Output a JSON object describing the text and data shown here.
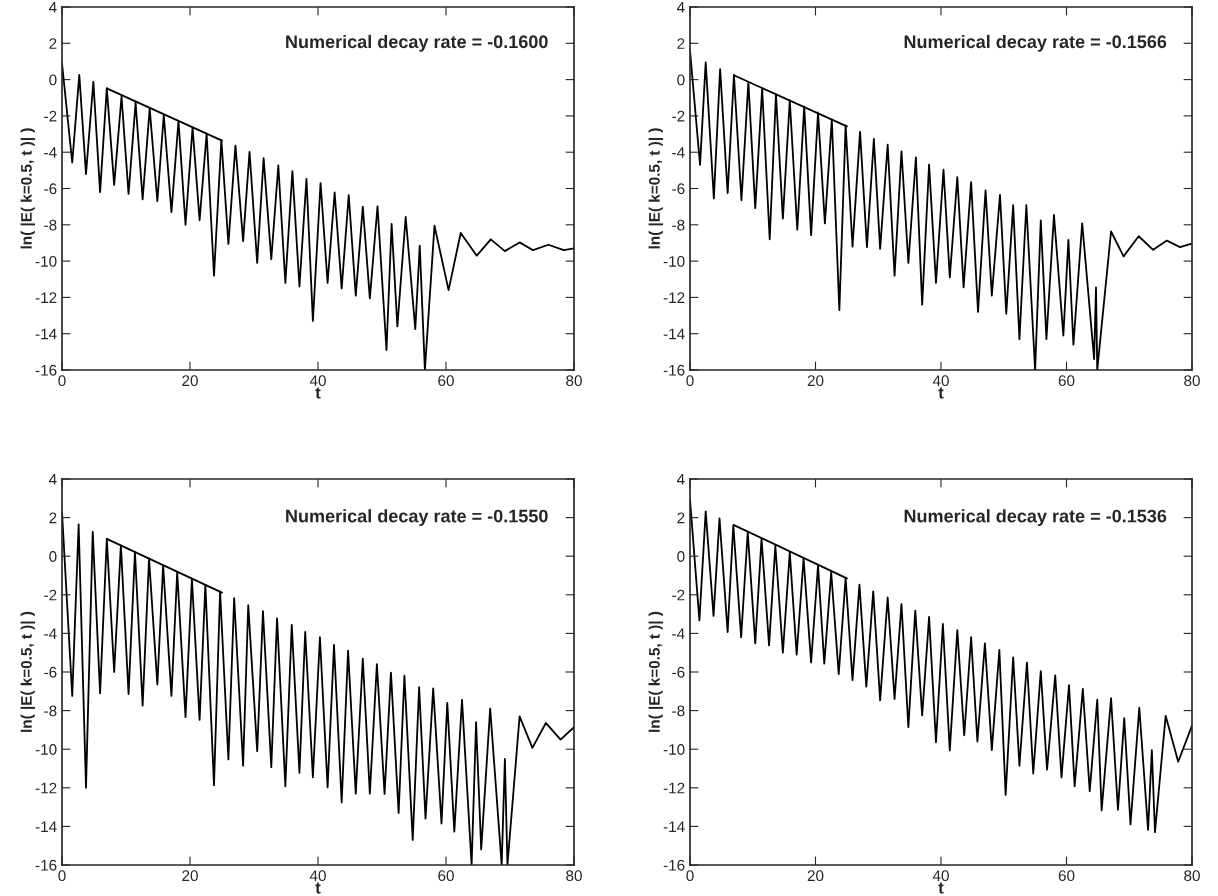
{
  "chart_data": [
    {
      "type": "line",
      "xlabel": "t",
      "ylabel": "ln( |E( k=0.5, t )| )",
      "xlim": [
        0,
        80
      ],
      "ylim": [
        -16,
        4
      ],
      "xticks": [
        0,
        20,
        40,
        60,
        80
      ],
      "yticks": [
        -16,
        -14,
        -12,
        -10,
        -8,
        -6,
        -4,
        -2,
        0,
        2,
        4
      ],
      "grid": false,
      "legend": false,
      "annotations": [
        "Numerical decay rate = -0.1600"
      ],
      "series": [
        {
          "color": "#000000",
          "x": [
            0,
            1.6,
            2.7,
            3.75,
            4.9,
            5.95,
            7.0,
            8.15,
            9.3,
            10.4,
            11.5,
            12.6,
            13.7,
            14.9,
            15.9,
            17.1,
            18.2,
            19.3,
            20.4,
            21.5,
            22.6,
            23.75,
            24.9,
            26.0,
            27.1,
            28.3,
            29.3,
            30.5,
            31.5,
            32.7,
            33.8,
            34.9,
            36.0,
            37.1,
            38.2,
            39.2,
            40.4,
            41.5,
            42.6,
            43.7,
            44.8,
            45.9,
            47.0,
            48.1,
            49.3,
            50.7,
            51.5,
            52.4,
            53.7,
            55.2,
            55.9,
            56.7,
            58.2,
            60.4,
            62.3,
            64.8,
            67.0,
            69.2,
            71.5,
            73.6,
            76.0,
            78.4,
            80
          ],
          "values": [
            0.9,
            -4.57,
            0.26,
            -5.2,
            -0.12,
            -6.2,
            -0.48,
            -5.8,
            -0.93,
            -6.3,
            -1.27,
            -6.6,
            -1.6,
            -6.7,
            -1.95,
            -7.3,
            -2.29,
            -8.0,
            -2.64,
            -7.75,
            -2.98,
            -10.8,
            -3.32,
            -9.05,
            -3.64,
            -8.9,
            -3.98,
            -10.1,
            -4.33,
            -9.9,
            -4.73,
            -11.2,
            -5.05,
            -11.4,
            -5.47,
            -13.3,
            -5.7,
            -11.2,
            -6.22,
            -11.5,
            -6.36,
            -11.9,
            -7.0,
            -12.05,
            -6.98,
            -14.9,
            -7.95,
            -13.6,
            -7.57,
            -13.75,
            -9.15,
            -16,
            -8.05,
            -11.6,
            -8.45,
            -9.7,
            -8.8,
            -9.45,
            -8.97,
            -9.4,
            -9.1,
            -9.4,
            -9.3
          ]
        },
        {
          "type": "line",
          "color": "#000000",
          "x": [
            7.0,
            25.0
          ],
          "values": [
            -0.48,
            -3.36
          ]
        }
      ]
    },
    {
      "type": "line",
      "xlabel": "t",
      "ylabel": "ln( |E( k=0.5, t )| )",
      "xlim": [
        0,
        80
      ],
      "ylim": [
        -16,
        4
      ],
      "xticks": [
        0,
        20,
        40,
        60,
        80
      ],
      "yticks": [
        -16,
        -14,
        -12,
        -10,
        -8,
        -6,
        -4,
        -2,
        0,
        2,
        4
      ],
      "grid": false,
      "legend": false,
      "annotations": [
        "Numerical decay rate = -0.1566"
      ],
      "series": [
        {
          "color": "#000000",
          "x": [
            0,
            1.6,
            2.5,
            3.8,
            4.8,
            6.0,
            7.0,
            8.2,
            9.3,
            10.4,
            11.5,
            12.7,
            13.7,
            14.8,
            15.9,
            17.1,
            18.2,
            19.3,
            20.4,
            21.5,
            22.6,
            23.8,
            24.8,
            25.9,
            27.1,
            28.2,
            29.3,
            30.3,
            31.5,
            32.6,
            33.7,
            34.8,
            36.0,
            37.0,
            38.1,
            39.2,
            40.4,
            41.4,
            42.6,
            43.6,
            44.8,
            45.9,
            47.1,
            48.1,
            49.4,
            50.4,
            51.5,
            52.5,
            53.6,
            55.0,
            55.9,
            56.8,
            58.0,
            59.5,
            60.3,
            61.1,
            62.5,
            64.4,
            64.7,
            64.9,
            67.1,
            69.1,
            71.5,
            73.8,
            76.0,
            78.1,
            80
          ],
          "values": [
            1.6,
            -4.7,
            0.95,
            -6.55,
            0.58,
            -6.25,
            0.24,
            -6.65,
            -0.14,
            -7.08,
            -0.5,
            -8.8,
            -0.81,
            -7.66,
            -1.15,
            -8.27,
            -1.49,
            -8.57,
            -1.81,
            -7.92,
            -2.2,
            -12.7,
            -2.52,
            -9.2,
            -2.88,
            -9.23,
            -3.27,
            -9.33,
            -3.59,
            -10.8,
            -3.95,
            -10.1,
            -4.29,
            -12.4,
            -4.68,
            -11.2,
            -4.96,
            -10.9,
            -5.38,
            -11.45,
            -5.65,
            -12.8,
            -6.1,
            -11.9,
            -6.35,
            -12.9,
            -6.92,
            -14.3,
            -6.92,
            -16,
            -7.76,
            -14.3,
            -7.46,
            -14.1,
            -8.83,
            -14.6,
            -7.92,
            -15.4,
            -11.45,
            -16,
            -8.37,
            -9.74,
            -8.63,
            -9.38,
            -8.87,
            -9.23,
            -9.03
          ]
        },
        {
          "type": "line",
          "color": "#000000",
          "x": [
            7.0,
            25.0
          ],
          "values": [
            0.24,
            -2.58
          ]
        }
      ]
    },
    {
      "type": "line",
      "xlabel": "t",
      "ylabel": "ln( |E( k=0.5, t )| )",
      "xlim": [
        0,
        80
      ],
      "ylim": [
        -16,
        4
      ],
      "xticks": [
        0,
        20,
        40,
        60,
        80
      ],
      "yticks": [
        -16,
        -14,
        -12,
        -10,
        -8,
        -6,
        -4,
        -2,
        0,
        2,
        4
      ],
      "grid": false,
      "legend": false,
      "annotations": [
        "Numerical decay rate = -0.1550"
      ],
      "series": [
        {
          "color": "#000000",
          "x": [
            0,
            1.6,
            2.6,
            3.75,
            4.8,
            5.95,
            7.0,
            8.15,
            9.2,
            10.4,
            11.4,
            12.6,
            13.6,
            14.9,
            15.8,
            17.1,
            18.0,
            19.3,
            20.3,
            21.5,
            22.4,
            23.75,
            24.7,
            26.0,
            26.9,
            28.3,
            29.1,
            30.5,
            31.4,
            32.7,
            33.6,
            34.9,
            35.9,
            37.1,
            38.0,
            39.2,
            40.3,
            41.5,
            42.5,
            43.7,
            44.7,
            45.9,
            47.0,
            48.1,
            49.2,
            50.4,
            51.4,
            52.6,
            53.5,
            54.8,
            55.8,
            56.8,
            58.0,
            59.3,
            60.2,
            61.3,
            62.5,
            64.0,
            64.7,
            65.5,
            66.9,
            68.7,
            69.2,
            69.6,
            71.5,
            73.5,
            75.6,
            77.9,
            80
          ],
          "values": [
            2.3,
            -7.24,
            1.65,
            -12.0,
            1.27,
            -7.1,
            0.9,
            -6.0,
            0.56,
            -7.14,
            0.22,
            -7.74,
            -0.12,
            -6.65,
            -0.48,
            -7.24,
            -0.84,
            -8.34,
            -1.17,
            -8.48,
            -1.49,
            -11.86,
            -1.83,
            -10.53,
            -2.17,
            -10.85,
            -2.53,
            -10.1,
            -2.85,
            -10.93,
            -3.22,
            -11.92,
            -3.56,
            -11.22,
            -3.92,
            -11.46,
            -4.2,
            -11.98,
            -4.6,
            -12.76,
            -4.9,
            -12.3,
            -5.31,
            -12.3,
            -5.59,
            -12.32,
            -6.03,
            -13.3,
            -6.19,
            -14.7,
            -6.79,
            -13.6,
            -6.85,
            -13.85,
            -7.6,
            -14.27,
            -7.44,
            -16,
            -8.6,
            -15.2,
            -7.9,
            -16,
            -10.5,
            -16,
            -8.3,
            -9.93,
            -8.64,
            -9.5,
            -8.86
          ]
        },
        {
          "type": "line",
          "color": "#000000",
          "x": [
            7.0,
            25.0
          ],
          "values": [
            0.9,
            -1.89
          ]
        }
      ]
    },
    {
      "type": "line",
      "xlabel": "t",
      "ylabel": "ln( |E( k=0.5, t )| )",
      "xlim": [
        0,
        80
      ],
      "ylim": [
        -16,
        4
      ],
      "xticks": [
        0,
        20,
        40,
        60,
        80
      ],
      "yticks": [
        -16,
        -14,
        -12,
        -10,
        -8,
        -6,
        -4,
        -2,
        0,
        2,
        4
      ],
      "grid": false,
      "legend": false,
      "annotations": [
        "Numerical decay rate = -0.1536"
      ],
      "series": [
        {
          "color": "#000000",
          "x": [
            0,
            1.5,
            2.5,
            3.75,
            4.7,
            6.0,
            6.9,
            8.15,
            9.2,
            10.4,
            11.4,
            12.6,
            13.6,
            14.8,
            15.9,
            17.0,
            18.1,
            19.3,
            20.4,
            21.4,
            22.5,
            23.7,
            24.8,
            25.9,
            27.0,
            28.1,
            29.2,
            30.3,
            31.5,
            32.6,
            33.7,
            34.8,
            35.9,
            37.0,
            38.1,
            39.2,
            40.3,
            41.4,
            42.6,
            43.7,
            44.8,
            45.8,
            47.0,
            48.1,
            49.3,
            50.3,
            51.5,
            52.5,
            53.7,
            54.7,
            55.9,
            56.9,
            58.2,
            59.2,
            60.4,
            61.3,
            62.6,
            63.7,
            64.9,
            65.6,
            67.1,
            68.2,
            69.2,
            70.2,
            71.6,
            73.0,
            73.6,
            74.1,
            75.8,
            77.8,
            80
          ],
          "values": [
            2.95,
            -3.33,
            2.32,
            -3.09,
            1.96,
            -3.93,
            1.61,
            -4.2,
            1.25,
            -4.52,
            0.91,
            -4.62,
            0.54,
            -5.0,
            0.2,
            -5.1,
            -0.12,
            -5.51,
            -0.48,
            -5.57,
            -0.83,
            -6.11,
            -1.13,
            -6.42,
            -1.47,
            -6.76,
            -1.82,
            -7.47,
            -2.14,
            -7.4,
            -2.48,
            -8.86,
            -2.82,
            -8.25,
            -3.15,
            -9.64,
            -3.51,
            -10.07,
            -3.83,
            -9.28,
            -4.2,
            -9.6,
            -4.52,
            -10.05,
            -4.86,
            -12.37,
            -5.25,
            -10.86,
            -5.51,
            -11.26,
            -5.95,
            -11.06,
            -6.17,
            -11.46,
            -6.68,
            -11.92,
            -6.88,
            -12.17,
            -7.43,
            -13.17,
            -7.36,
            -13.14,
            -8.39,
            -13.9,
            -7.85,
            -14.18,
            -10.05,
            -14.3,
            -8.27,
            -10.65,
            -8.78
          ]
        },
        {
          "type": "line",
          "color": "#000000",
          "x": [
            7.0,
            25.0
          ],
          "values": [
            1.61,
            -1.15
          ]
        }
      ]
    }
  ]
}
